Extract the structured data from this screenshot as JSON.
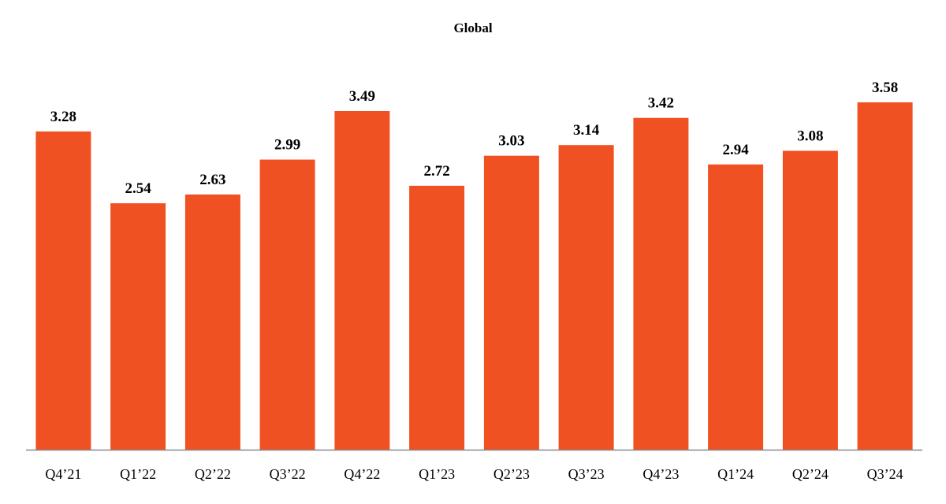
{
  "chart_data": {
    "type": "bar",
    "title": "Global",
    "xlabel": "",
    "ylabel": "",
    "categories": [
      "Q4’21",
      "Q1’22",
      "Q2’22",
      "Q3’22",
      "Q4’22",
      "Q1’23",
      "Q2’23",
      "Q3’23",
      "Q4’23",
      "Q1’24",
      "Q2’24",
      "Q3’24"
    ],
    "values": [
      3.28,
      2.54,
      2.63,
      2.99,
      3.49,
      2.72,
      3.03,
      3.14,
      3.42,
      2.94,
      3.08,
      3.58
    ],
    "value_labels": [
      "3.28",
      "2.54",
      "2.63",
      "2.99",
      "3.49",
      "2.72",
      "3.03",
      "3.14",
      "3.42",
      "2.94",
      "3.08",
      "3.58"
    ],
    "ylim": [
      0,
      4.0
    ],
    "grid": false,
    "legend": "none",
    "colors": {
      "bar": "#f05123",
      "axis": "#888888"
    }
  }
}
